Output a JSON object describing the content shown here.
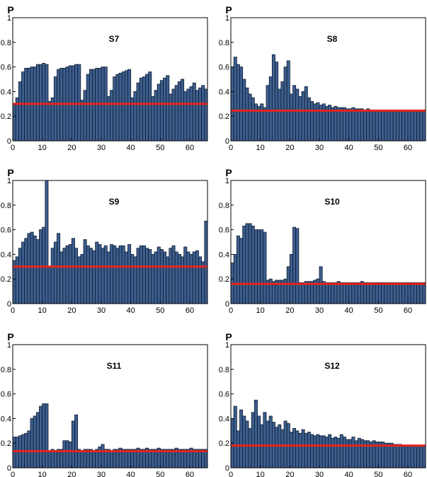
{
  "colors": {
    "bar": "#3d5f8f",
    "bar_edge": "#0d1a2e",
    "threshold": "#e8231c"
  },
  "chart_data": [
    {
      "type": "bar",
      "title": "S7",
      "ylabel": "P",
      "xlim": [
        0,
        66
      ],
      "ylim": [
        0,
        1
      ],
      "xticks": [
        "0",
        "10",
        "20",
        "30",
        "40",
        "50",
        "60"
      ],
      "yticks": [
        "0",
        "0.2",
        "0.4",
        "0.6",
        "0.8",
        "1"
      ],
      "threshold": 0.3,
      "values": [
        0.3,
        0.35,
        0.48,
        0.56,
        0.59,
        0.59,
        0.6,
        0.6,
        0.62,
        0.62,
        0.63,
        0.62,
        0.32,
        0.35,
        0.52,
        0.58,
        0.59,
        0.59,
        0.6,
        0.61,
        0.61,
        0.62,
        0.62,
        0.33,
        0.41,
        0.54,
        0.58,
        0.58,
        0.59,
        0.59,
        0.6,
        0.6,
        0.36,
        0.41,
        0.52,
        0.54,
        0.55,
        0.56,
        0.57,
        0.58,
        0.35,
        0.4,
        0.47,
        0.51,
        0.52,
        0.54,
        0.56,
        0.36,
        0.41,
        0.46,
        0.49,
        0.51,
        0.53,
        0.38,
        0.42,
        0.45,
        0.48,
        0.5,
        0.4,
        0.42,
        0.44,
        0.47,
        0.41,
        0.43,
        0.45,
        0.42
      ]
    },
    {
      "type": "bar",
      "title": "S8",
      "ylabel": "P",
      "xlim": [
        0,
        66
      ],
      "ylim": [
        0,
        1
      ],
      "xticks": [
        "0",
        "10",
        "20",
        "30",
        "40",
        "50",
        "60"
      ],
      "yticks": [
        "0",
        "0.2",
        "0.4",
        "0.6",
        "0.8",
        "1"
      ],
      "threshold": 0.245,
      "values": [
        0.6,
        0.68,
        0.62,
        0.6,
        0.5,
        0.43,
        0.38,
        0.35,
        0.3,
        0.28,
        0.3,
        0.27,
        0.45,
        0.52,
        0.7,
        0.64,
        0.42,
        0.48,
        0.6,
        0.65,
        0.38,
        0.45,
        0.42,
        0.36,
        0.4,
        0.44,
        0.35,
        0.32,
        0.3,
        0.31,
        0.29,
        0.3,
        0.28,
        0.29,
        0.27,
        0.28,
        0.27,
        0.27,
        0.27,
        0.26,
        0.26,
        0.27,
        0.26,
        0.26,
        0.26,
        0.25,
        0.26,
        0.25,
        0.25,
        0.25,
        0.25,
        0.25,
        0.25,
        0.25,
        0.25,
        0.24,
        0.24,
        0.24,
        0.24,
        0.24,
        0.24,
        0.24,
        0.24,
        0.24,
        0.24,
        0.24
      ]
    },
    {
      "type": "bar",
      "title": "S9",
      "ylabel": "P",
      "xlim": [
        0,
        66
      ],
      "ylim": [
        0,
        1
      ],
      "xticks": [
        "0",
        "10",
        "20",
        "30",
        "40",
        "50",
        "60"
      ],
      "yticks": [
        "0",
        "0.2",
        "0.4",
        "0.6",
        "0.8",
        "1"
      ],
      "threshold": 0.3,
      "values": [
        0.35,
        0.38,
        0.45,
        0.5,
        0.53,
        0.57,
        0.58,
        0.55,
        0.52,
        0.6,
        0.62,
        1.0,
        0.3,
        0.45,
        0.5,
        0.57,
        0.42,
        0.45,
        0.47,
        0.48,
        0.53,
        0.45,
        0.38,
        0.4,
        0.52,
        0.47,
        0.45,
        0.43,
        0.5,
        0.48,
        0.45,
        0.47,
        0.42,
        0.48,
        0.47,
        0.45,
        0.47,
        0.47,
        0.42,
        0.48,
        0.4,
        0.38,
        0.45,
        0.47,
        0.47,
        0.45,
        0.44,
        0.4,
        0.42,
        0.46,
        0.44,
        0.42,
        0.38,
        0.45,
        0.47,
        0.42,
        0.4,
        0.38,
        0.46,
        0.42,
        0.4,
        0.42,
        0.43,
        0.38,
        0.34,
        0.67
      ]
    },
    {
      "type": "bar",
      "title": "S10",
      "ylabel": "P",
      "xlim": [
        0,
        66
      ],
      "ylim": [
        0,
        1
      ],
      "xticks": [
        "0",
        "10",
        "20",
        "30",
        "40",
        "50",
        "60"
      ],
      "yticks": [
        "0",
        "0.2",
        "0.4",
        "0.6",
        "0.8",
        "1"
      ],
      "threshold": 0.16,
      "values": [
        0.33,
        0.4,
        0.55,
        0.53,
        0.63,
        0.65,
        0.65,
        0.63,
        0.6,
        0.6,
        0.6,
        0.58,
        0.19,
        0.2,
        0.18,
        0.19,
        0.19,
        0.19,
        0.2,
        0.3,
        0.4,
        0.62,
        0.61,
        0.17,
        0.17,
        0.18,
        0.18,
        0.18,
        0.19,
        0.2,
        0.3,
        0.18,
        0.17,
        0.17,
        0.17,
        0.17,
        0.18,
        0.17,
        0.17,
        0.17,
        0.17,
        0.17,
        0.17,
        0.17,
        0.18,
        0.17,
        0.17,
        0.17,
        0.17,
        0.17,
        0.17,
        0.17,
        0.17,
        0.17,
        0.17,
        0.17,
        0.17,
        0.17,
        0.17,
        0.17,
        0.17,
        0.17,
        0.17,
        0.17,
        0.17,
        0.17
      ]
    },
    {
      "type": "bar",
      "title": "S11",
      "ylabel": "P",
      "xlim": [
        0,
        66
      ],
      "ylim": [
        0,
        1
      ],
      "xticks": [
        "0",
        "10",
        "20",
        "30",
        "40",
        "50",
        "60"
      ],
      "yticks": [
        "0",
        "0.2",
        "0.4",
        "0.6",
        "0.8",
        "1"
      ],
      "threshold": 0.135,
      "values": [
        0.25,
        0.25,
        0.26,
        0.27,
        0.28,
        0.3,
        0.4,
        0.42,
        0.45,
        0.5,
        0.52,
        0.52,
        0.14,
        0.15,
        0.14,
        0.15,
        0.15,
        0.22,
        0.22,
        0.21,
        0.38,
        0.43,
        0.15,
        0.14,
        0.15,
        0.15,
        0.15,
        0.14,
        0.15,
        0.17,
        0.19,
        0.15,
        0.15,
        0.14,
        0.15,
        0.15,
        0.16,
        0.15,
        0.15,
        0.15,
        0.15,
        0.15,
        0.16,
        0.15,
        0.15,
        0.16,
        0.15,
        0.15,
        0.15,
        0.16,
        0.15,
        0.15,
        0.15,
        0.15,
        0.15,
        0.16,
        0.15,
        0.15,
        0.15,
        0.15,
        0.16,
        0.15,
        0.15,
        0.15,
        0.15,
        0.15
      ]
    },
    {
      "type": "bar",
      "title": "S12",
      "ylabel": "P",
      "xlim": [
        0,
        66
      ],
      "ylim": [
        0,
        1
      ],
      "xticks": [
        "0",
        "10",
        "20",
        "30",
        "40",
        "50",
        "60"
      ],
      "yticks": [
        "0",
        "0.2",
        "0.4",
        "0.6",
        "0.8",
        "1"
      ],
      "threshold": 0.18,
      "values": [
        0.4,
        0.5,
        0.3,
        0.47,
        0.42,
        0.38,
        0.32,
        0.45,
        0.55,
        0.42,
        0.35,
        0.45,
        0.38,
        0.42,
        0.37,
        0.33,
        0.35,
        0.31,
        0.38,
        0.36,
        0.29,
        0.32,
        0.3,
        0.28,
        0.31,
        0.28,
        0.29,
        0.27,
        0.26,
        0.27,
        0.26,
        0.26,
        0.25,
        0.27,
        0.24,
        0.25,
        0.24,
        0.27,
        0.25,
        0.23,
        0.23,
        0.25,
        0.22,
        0.24,
        0.23,
        0.22,
        0.22,
        0.21,
        0.22,
        0.21,
        0.21,
        0.21,
        0.2,
        0.2,
        0.2,
        0.19,
        0.19,
        0.19,
        0.18,
        0.18,
        0.18,
        0.18,
        0.18,
        0.18,
        0.18,
        0.18
      ]
    }
  ]
}
